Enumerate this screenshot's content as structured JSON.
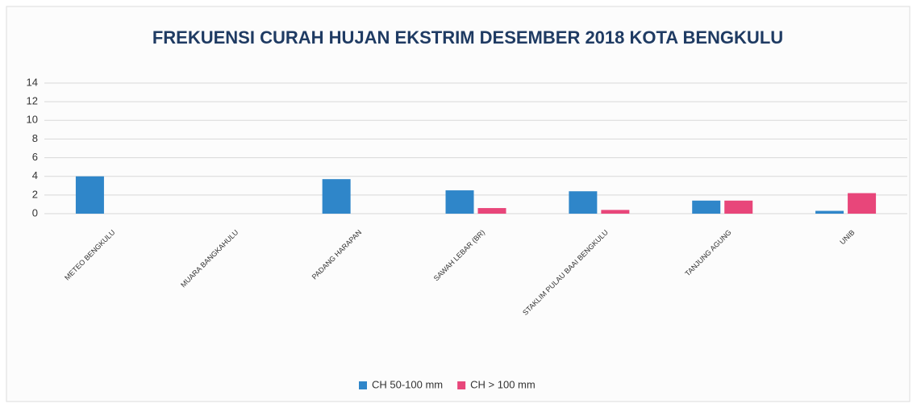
{
  "chart_data": {
    "type": "bar",
    "title": "FREKUENSI CURAH HUJAN EKSTRIM DESEMBER 2018 KOTA BENGKULU",
    "categories": [
      "METEO BENGKULU",
      "MUARA BANGKAHULU",
      "PADANG HARAPAN",
      "SAWAH LEBAR (BR)",
      "STAKLIM PULAU BAAI BENGKULU",
      "TANJUNG AGUNG",
      "UNIB"
    ],
    "series": [
      {
        "name": "CH 50-100 mm",
        "color": "#2f86c9",
        "values": [
          4.0,
          0,
          3.7,
          2.5,
          2.4,
          1.4,
          0.3
        ]
      },
      {
        "name": "CH > 100 mm",
        "color": "#e8467a",
        "values": [
          0,
          0,
          0,
          0.6,
          0.4,
          1.4,
          2.2
        ]
      }
    ],
    "ylim": [
      0,
      14
    ],
    "yticks": [
      0,
      2,
      4,
      6,
      8,
      10,
      12,
      14
    ],
    "grid": true,
    "legend": "bottom"
  }
}
